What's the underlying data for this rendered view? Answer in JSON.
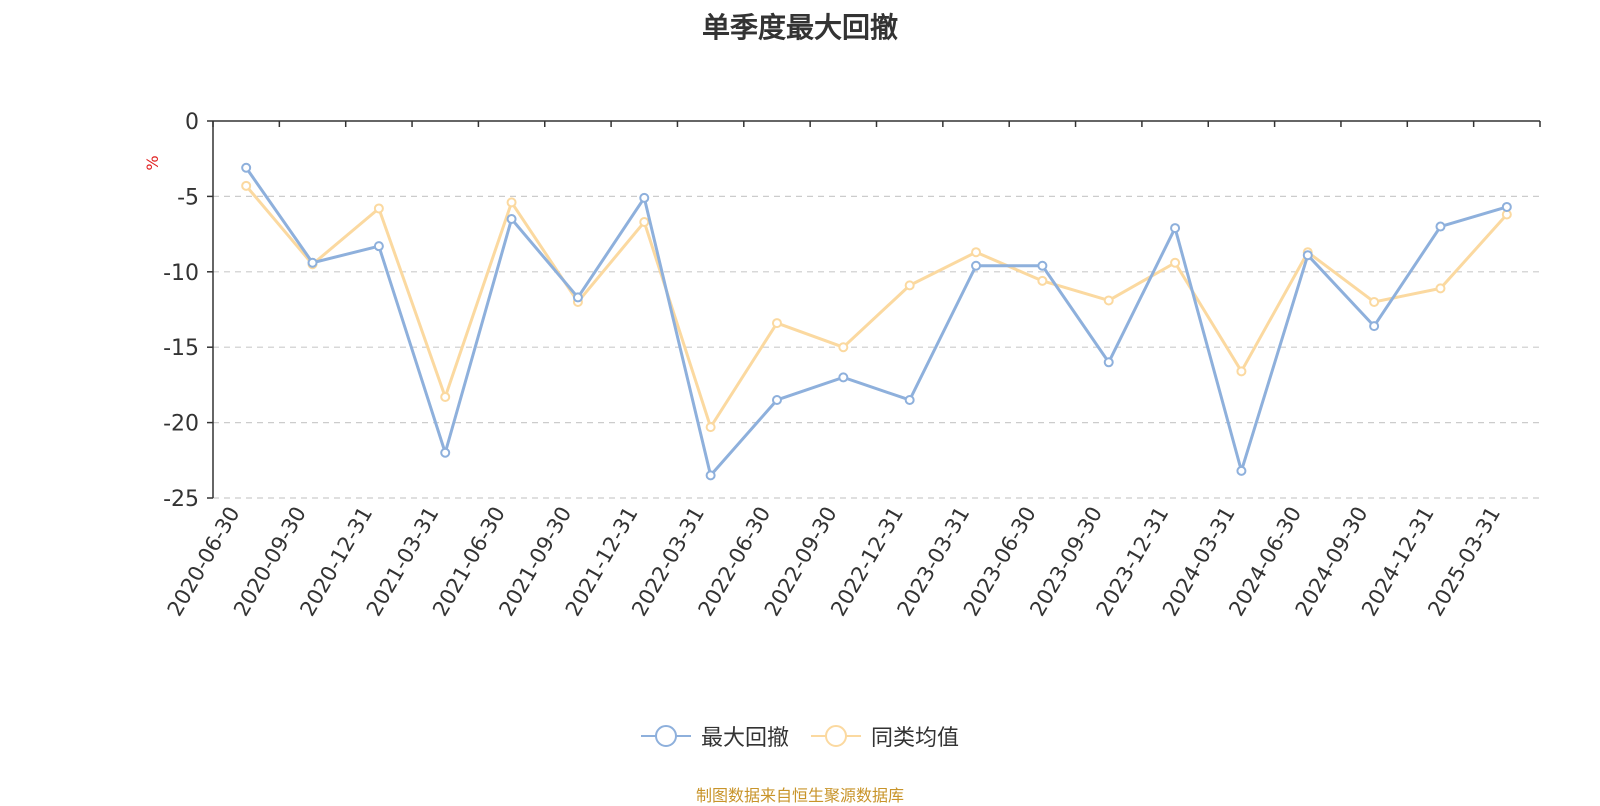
{
  "chart_data": {
    "type": "line",
    "title": "单季度最大回撤",
    "ylabel": "%",
    "ylim": [
      -25,
      0
    ],
    "yticks": [
      0,
      -5,
      -10,
      -15,
      -20,
      -25
    ],
    "grid": true,
    "legend_position": "bottom-center",
    "categories": [
      "2020-06-30",
      "2020-09-30",
      "2020-12-31",
      "2021-03-31",
      "2021-06-30",
      "2021-09-30",
      "2021-12-31",
      "2022-03-31",
      "2022-06-30",
      "2022-09-30",
      "2022-12-31",
      "2023-03-31",
      "2023-06-30",
      "2023-09-30",
      "2023-12-31",
      "2024-03-31",
      "2024-06-30",
      "2024-09-30",
      "2024-12-31",
      "2025-03-31"
    ],
    "series": [
      {
        "name": "最大回撤",
        "color": "#8eb0dc",
        "values": [
          -3.1,
          -9.4,
          -8.3,
          -22.0,
          -6.5,
          -11.7,
          -5.1,
          -23.5,
          -18.5,
          -17.0,
          -18.5,
          -9.6,
          -9.6,
          -16.0,
          -7.1,
          -23.2,
          -8.9,
          -13.6,
          -7.0,
          -5.7
        ]
      },
      {
        "name": "同类均值",
        "color": "#fbd9a0",
        "values": [
          -4.3,
          -9.5,
          -5.8,
          -18.3,
          -5.4,
          -12.0,
          -6.7,
          -20.3,
          -13.4,
          -15.0,
          -10.9,
          -8.7,
          -10.6,
          -11.9,
          -9.4,
          -16.6,
          -8.7,
          -12.0,
          -11.1,
          -6.2
        ]
      }
    ]
  },
  "legend": {
    "item1": "最大回撤",
    "item2": "同类均值"
  },
  "footer": "制图数据来自恒生聚源数据库",
  "colors": {
    "axis": "#333333",
    "grid": "#cccccc",
    "ylabel": "#e02020",
    "footer": "#c8942a"
  }
}
